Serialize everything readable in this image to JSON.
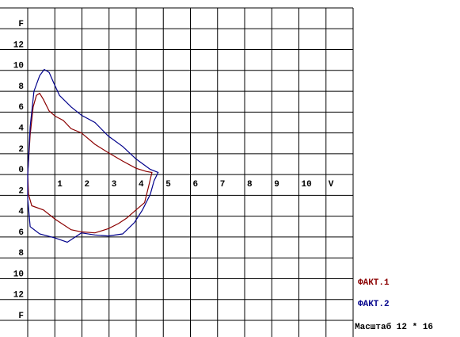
{
  "chart_data": {
    "type": "line",
    "annotation": "Масштаб 12 * 16",
    "xlim": [
      0,
      12
    ],
    "xticks": [
      1,
      2,
      3,
      4,
      5,
      6,
      7,
      8,
      9,
      10,
      {
        "value": 11,
        "label": "V"
      }
    ],
    "ylim": [
      -15.6,
      16
    ],
    "yticks": [
      {
        "value": 14,
        "label": "F"
      },
      12,
      10,
      8,
      6,
      4,
      2,
      0,
      {
        "value": -2,
        "label": "2"
      },
      {
        "value": -4,
        "label": "4"
      },
      {
        "value": -6,
        "label": "6"
      },
      {
        "value": -8,
        "label": "8"
      },
      {
        "value": -10,
        "label": "10"
      },
      {
        "value": -12,
        "label": "12"
      },
      {
        "value": -14,
        "label": "F"
      }
    ],
    "grid": true,
    "series": [
      {
        "name": "ФАКТ.1",
        "color": "#8b0000",
        "x": [
          0,
          0.09,
          0.2,
          0.32,
          0.44,
          0.58,
          0.79,
          1.02,
          1.31,
          1.6,
          1.98,
          2.48,
          2.97,
          3.5,
          3.99,
          4.37,
          4.58,
          4.46,
          4.31,
          3.99,
          3.64,
          3.35,
          2.97,
          2.48,
          1.98,
          1.6,
          1.02,
          0.58,
          0.15,
          0.03,
          0
        ],
        "values": [
          0,
          3.8,
          6.5,
          7.6,
          7.8,
          7.2,
          6.1,
          5.6,
          5.2,
          4.4,
          4.0,
          2.9,
          2.1,
          1.3,
          0.6,
          0.3,
          0.2,
          -1.1,
          -2.7,
          -3.4,
          -4.2,
          -4.7,
          -5.2,
          -5.6,
          -5.5,
          -5.3,
          -4.3,
          -3.4,
          -3.0,
          -1.9,
          0
        ]
      },
      {
        "name": "ФАКТ.2",
        "color": "#00008b",
        "x": [
          0,
          0.09,
          0.23,
          0.44,
          0.61,
          0.79,
          0.96,
          1.17,
          1.6,
          1.98,
          2.48,
          2.97,
          3.5,
          3.99,
          4.52,
          4.81,
          4.66,
          4.52,
          4.23,
          3.94,
          3.5,
          2.97,
          2.48,
          1.98,
          1.46,
          1.02,
          0.44,
          0.09,
          0,
          0
        ],
        "values": [
          0,
          4.6,
          8.0,
          9.5,
          10.1,
          9.8,
          8.8,
          7.6,
          6.5,
          5.7,
          5.0,
          3.7,
          2.7,
          1.5,
          0.5,
          0.2,
          -0.6,
          -1.9,
          -3.4,
          -4.6,
          -5.7,
          -5.9,
          -5.8,
          -5.6,
          -6.5,
          -6.1,
          -5.7,
          -5.0,
          -2.3,
          0
        ]
      }
    ]
  }
}
